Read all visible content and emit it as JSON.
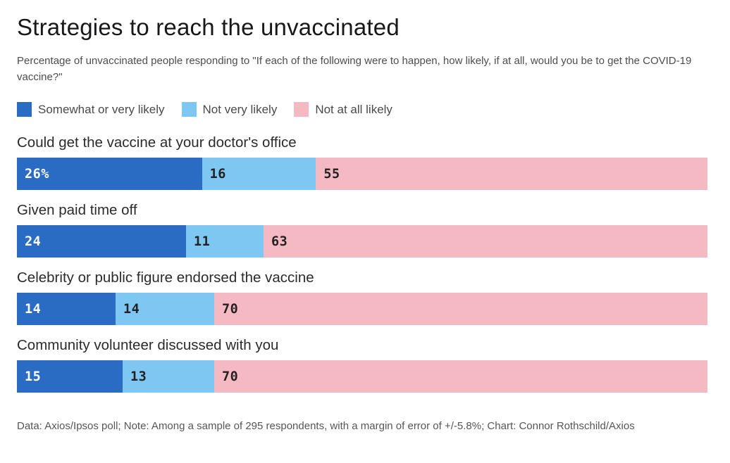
{
  "title": "Strategies to reach the unvaccinated",
  "subtitle": "Percentage of unvaccinated people responding to \"If each of the following were to happen, how likely, if at all, would you be to get the COVID-19 vaccine?\"",
  "colors": {
    "somewhat_or_very_likely": "#2a6cc3",
    "not_very_likely": "#7dc7f2",
    "not_at_all_likely": "#f5b9c3"
  },
  "chart_data": {
    "type": "bar",
    "orientation": "horizontal",
    "stacked": true,
    "normalized": true,
    "legend_position": "top",
    "grid": false,
    "categories": [
      "Could get the vaccine at your doctor's office",
      "Given paid time off",
      "Celebrity or public figure endorsed the vaccine",
      "Community volunteer discussed with you"
    ],
    "series": [
      {
        "name": "Somewhat or very likely",
        "color": "#2a6cc3",
        "values": [
          26,
          24,
          14,
          15
        ]
      },
      {
        "name": "Not very likely",
        "color": "#7dc7f2",
        "values": [
          16,
          11,
          14,
          13
        ]
      },
      {
        "name": "Not at all likely",
        "color": "#f5b9c3",
        "values": [
          55,
          63,
          70,
          70
        ]
      }
    ],
    "value_labels": [
      [
        "26%",
        "16",
        "55"
      ],
      [
        "24",
        "11",
        "63"
      ],
      [
        "14",
        "14",
        "70"
      ],
      [
        "15",
        "13",
        "70"
      ]
    ]
  },
  "footer": "Data: Axios/Ipsos poll; Note: Among a sample of 295 respondents, with a margin of error of +/-5.8%; Chart: Connor Rothschild/Axios"
}
